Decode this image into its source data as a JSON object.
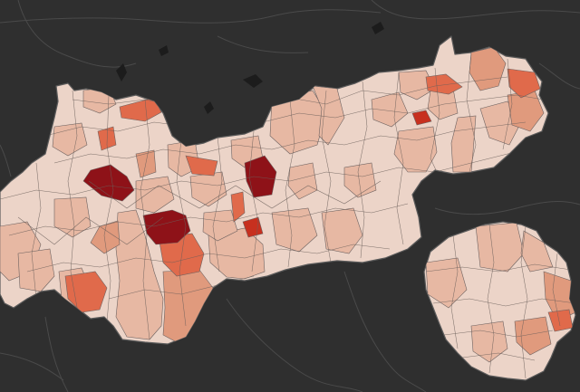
{
  "map": {
    "type": "choropleth",
    "basemap_theme": "dark",
    "colors": {
      "background": "#2f2f2f",
      "basemap_lines": "#4a4a4a",
      "lakes": "#1c1c1c",
      "boundary": "#6e6260",
      "scale": [
        "#ecd4c8",
        "#e7b8a3",
        "#e09a7d",
        "#e06a4b",
        "#c7301f",
        "#8e1218"
      ]
    },
    "regions": [
      {
        "id": "north-tyrol",
        "name": "",
        "visible_label": false
      },
      {
        "id": "east-tyrol",
        "name": "",
        "visible_label": false
      }
    ],
    "highlighted_municipalities": [
      {
        "id": "dark-1",
        "class": 5
      },
      {
        "id": "dark-2",
        "class": 5
      },
      {
        "id": "dark-3",
        "class": 5
      },
      {
        "id": "dark-4",
        "class": 5
      },
      {
        "id": "red-1",
        "class": 4
      },
      {
        "id": "red-2",
        "class": 4
      },
      {
        "id": "red-3",
        "class": 4
      },
      {
        "id": "red-4",
        "class": 4
      },
      {
        "id": "red-5",
        "class": 4
      },
      {
        "id": "red-6",
        "class": 4
      },
      {
        "id": "red-7",
        "class": 4
      }
    ]
  }
}
